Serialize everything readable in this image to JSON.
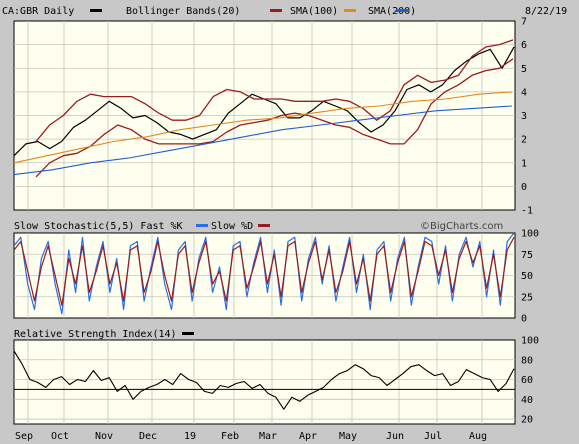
{
  "colors": {
    "frame_bg": "#c8c8c8",
    "panel_bg": "#fffff0",
    "grid": "#c4c4b8",
    "price": "#000000",
    "bollinger": "#9b1c1c",
    "sma100": "#e08a1e",
    "sma200": "#1f5fd1",
    "stoch_fast": "#2a6ee8",
    "stoch_slow": "#9b1c1c",
    "rsi": "#000000"
  },
  "watermark": "©BigCharts.com",
  "x_axis": {
    "month_labels": [
      "Sep",
      "Oct",
      "Nov",
      "Dec",
      "19",
      "Feb",
      "Mar",
      "Apr",
      "May",
      "Jun",
      "Jul",
      "Aug"
    ]
  },
  "chart_data": [
    {
      "type": "line",
      "panel": "price",
      "legend": [
        {
          "label": "CA:GBR Daily",
          "color": "#000000"
        },
        {
          "label": "Bollinger Bands(20)",
          "color": "#9b1c1c"
        },
        {
          "label": "SMA(100)",
          "color": "#e08a1e"
        },
        {
          "label": "SMA(200)",
          "color": "#1f5fd1"
        }
      ],
      "date": "8/22/19",
      "y_ticks": [
        "-1",
        "0",
        "1",
        "2",
        "3",
        "4",
        "5",
        "6",
        "7"
      ],
      "ylim": [
        -1,
        7
      ],
      "series": [
        {
          "name": "CA:GBR Daily",
          "values": [
            1.3,
            1.8,
            1.9,
            1.6,
            1.9,
            2.5,
            2.8,
            3.2,
            3.6,
            3.3,
            2.9,
            3.0,
            2.7,
            2.3,
            2.2,
            2.0,
            2.2,
            2.4,
            3.1,
            3.5,
            3.9,
            3.7,
            3.5,
            2.9,
            2.9,
            3.2,
            3.6,
            3.4,
            3.2,
            2.7,
            2.3,
            2.6,
            3.2,
            4.1,
            4.3,
            4.0,
            4.3,
            4.9,
            5.3,
            5.6,
            5.8,
            5.0,
            5.9
          ]
        },
        {
          "name": "Bollinger Bands(20)",
          "values": [
            1.9,
            2.6,
            3.0,
            3.6,
            3.9,
            3.8,
            3.8,
            3.8,
            3.5,
            3.1,
            2.8,
            2.8,
            3.0,
            3.8,
            4.1,
            4.0,
            3.7,
            3.7,
            3.7,
            3.6,
            3.6,
            3.6,
            3.7,
            3.6,
            3.3,
            2.8,
            3.2,
            4.3,
            4.7,
            4.4,
            4.5,
            4.7,
            5.5,
            5.9,
            6.0,
            6.2
          ]
        },
        {
          "name": "Bollinger Bands(20)",
          "values": [
            0.4,
            1.0,
            1.3,
            1.4,
            1.7,
            2.2,
            2.6,
            2.4,
            2.0,
            1.8,
            1.8,
            1.8,
            1.8,
            1.9,
            2.3,
            2.6,
            2.7,
            2.8,
            3.0,
            3.1,
            3.0,
            2.8,
            2.6,
            2.5,
            2.2,
            2.0,
            1.8,
            1.8,
            2.4,
            3.5,
            4.0,
            4.3,
            4.7,
            4.9,
            5.0,
            5.4
          ]
        },
        {
          "name": "SMA(100)",
          "values": [
            1.0,
            1.3,
            1.6,
            1.9,
            2.1,
            2.4,
            2.6,
            2.8,
            2.9,
            3.1,
            3.3,
            3.4,
            3.6,
            3.7,
            3.9,
            4.0
          ]
        },
        {
          "name": "SMA(200)",
          "values": [
            0.5,
            0.7,
            1.0,
            1.2,
            1.5,
            1.8,
            2.1,
            2.4,
            2.6,
            2.8,
            3.0,
            3.2,
            3.3,
            3.4
          ]
        }
      ]
    },
    {
      "type": "line",
      "panel": "stochastic",
      "legend": [
        {
          "label": "Slow Stochastic(5,5) Fast %K",
          "color": "#2a6ee8"
        },
        {
          "label": "Slow %D",
          "color": "#9b1c1c"
        }
      ],
      "y_ticks": [
        "0",
        "25",
        "50",
        "75",
        "100"
      ],
      "ylim": [
        0,
        100
      ],
      "series": [
        {
          "name": "Fast %K",
          "values": [
            85,
            95,
            40,
            10,
            70,
            90,
            40,
            5,
            80,
            30,
            95,
            20,
            60,
            90,
            30,
            70,
            10,
            85,
            90,
            20,
            60,
            95,
            40,
            10,
            80,
            90,
            20,
            70,
            95,
            30,
            60,
            10,
            85,
            90,
            25,
            65,
            95,
            30,
            80,
            15,
            90,
            95,
            20,
            70,
            95,
            40,
            85,
            20,
            60,
            95,
            30,
            75,
            10,
            80,
            90,
            20,
            70,
            95,
            15,
            60,
            95,
            90,
            40,
            85,
            20,
            75,
            95,
            60,
            90,
            25,
            80,
            15,
            90,
            100
          ]
        },
        {
          "name": "Slow %D",
          "values": [
            80,
            90,
            55,
            20,
            60,
            85,
            50,
            15,
            70,
            40,
            85,
            30,
            55,
            85,
            40,
            65,
            20,
            80,
            85,
            30,
            55,
            90,
            50,
            20,
            75,
            85,
            30,
            65,
            90,
            40,
            55,
            20,
            80,
            85,
            35,
            60,
            90,
            40,
            75,
            25,
            85,
            90,
            30,
            65,
            90,
            45,
            80,
            30,
            55,
            90,
            40,
            70,
            20,
            75,
            85,
            30,
            65,
            90,
            25,
            55,
            90,
            85,
            50,
            80,
            30,
            70,
            90,
            65,
            85,
            35,
            75,
            25,
            80,
            95
          ]
        }
      ]
    },
    {
      "type": "line",
      "panel": "rsi",
      "legend": [
        {
          "label": "Relative Strength Index(14)",
          "color": "#000000"
        }
      ],
      "y_ticks": [
        "20",
        "40",
        "60",
        "80",
        "100"
      ],
      "ylim": [
        15,
        100
      ],
      "series": [
        {
          "name": "Relative Strength Index(14)",
          "values": [
            89,
            76,
            60,
            57,
            52,
            60,
            63,
            55,
            60,
            58,
            69,
            59,
            62,
            48,
            54,
            40,
            48,
            52,
            55,
            60,
            55,
            66,
            60,
            57,
            48,
            46,
            54,
            52,
            56,
            58,
            51,
            55,
            46,
            42,
            30,
            42,
            38,
            44,
            48,
            52,
            60,
            66,
            69,
            75,
            71,
            64,
            62,
            54,
            60,
            66,
            73,
            75,
            69,
            64,
            66,
            54,
            58,
            70,
            66,
            62,
            60,
            48,
            56,
            71
          ]
        }
      ]
    }
  ]
}
